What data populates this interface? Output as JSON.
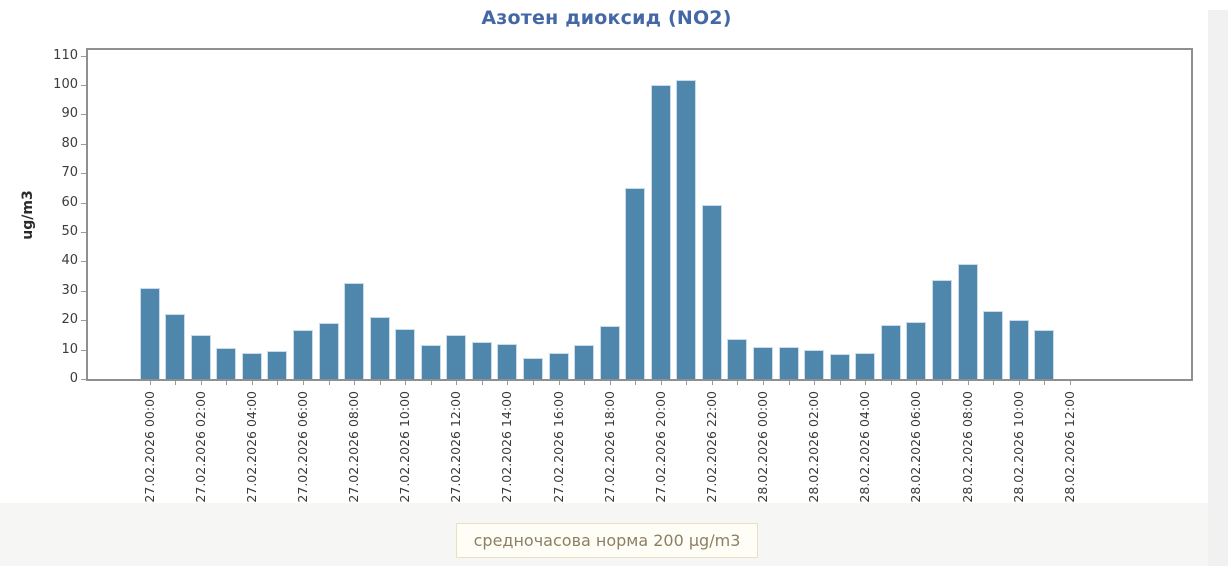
{
  "page": {
    "card_background": "#ffffff",
    "outer_background": "#f4f4f2"
  },
  "chart_data": {
    "type": "bar",
    "title": "Азотен диоксид (NO2)",
    "xlabel": "",
    "ylabel": "ug/m3",
    "ylim": [
      0,
      110
    ],
    "ytick_step": 10,
    "grid": false,
    "legend": null,
    "bar_color": "#4f86ac",
    "bar_edge_color": "#cadcea",
    "title_color": "#4468a6",
    "plot_border_color": "#8f8f8f",
    "bars_per_x_tick": 2,
    "x_tick_labels": [
      "27.02.2026 00:00",
      "27.02.2026 02:00",
      "27.02.2026 04:00",
      "27.02.2026 06:00",
      "27.02.2026 08:00",
      "27.02.2026 10:00",
      "27.02.2026 12:00",
      "27.02.2026 14:00",
      "27.02.2026 16:00",
      "27.02.2026 18:00",
      "27.02.2026 20:00",
      "27.02.2026 22:00",
      "28.02.2026 00:00",
      "28.02.2026 02:00",
      "28.02.2026 04:00",
      "28.02.2026 06:00",
      "28.02.2026 08:00",
      "28.02.2026 10:00",
      "28.02.2026 12:00"
    ],
    "categories": [
      "27.02.2026 00:00",
      "27.02.2026 01:00",
      "27.02.2026 02:00",
      "27.02.2026 03:00",
      "27.02.2026 04:00",
      "27.02.2026 05:00",
      "27.02.2026 06:00",
      "27.02.2026 07:00",
      "27.02.2026 08:00",
      "27.02.2026 09:00",
      "27.02.2026 10:00",
      "27.02.2026 11:00",
      "27.02.2026 12:00",
      "27.02.2026 13:00",
      "27.02.2026 14:00",
      "27.02.2026 15:00",
      "27.02.2026 16:00",
      "27.02.2026 17:00",
      "27.02.2026 18:00",
      "27.02.2026 19:00",
      "27.02.2026 20:00",
      "27.02.2026 21:00",
      "27.02.2026 22:00",
      "27.02.2026 23:00",
      "28.02.2026 00:00",
      "28.02.2026 01:00",
      "28.02.2026 02:00",
      "28.02.2026 03:00",
      "28.02.2026 04:00",
      "28.02.2026 05:00",
      "28.02.2026 06:00",
      "28.02.2026 07:00",
      "28.02.2026 08:00",
      "28.02.2026 09:00",
      "28.02.2026 10:00",
      "28.02.2026 11:00"
    ],
    "values": [
      31,
      22,
      15,
      10.5,
      9,
      9.5,
      16.5,
      19,
      32.5,
      21,
      17,
      11.5,
      15,
      12.5,
      12,
      7,
      9,
      11.5,
      18,
      65,
      100,
      101.5,
      59,
      13.5,
      11,
      11,
      10,
      8.5,
      9,
      18.5,
      19.5,
      33.5,
      39,
      23,
      20,
      16.5
    ]
  },
  "norm_badge": {
    "label": "средночасова норма 200 µg/m3",
    "text_color": "#8d7f66",
    "background": "#fffef6",
    "border_color": "#eadfc2"
  }
}
